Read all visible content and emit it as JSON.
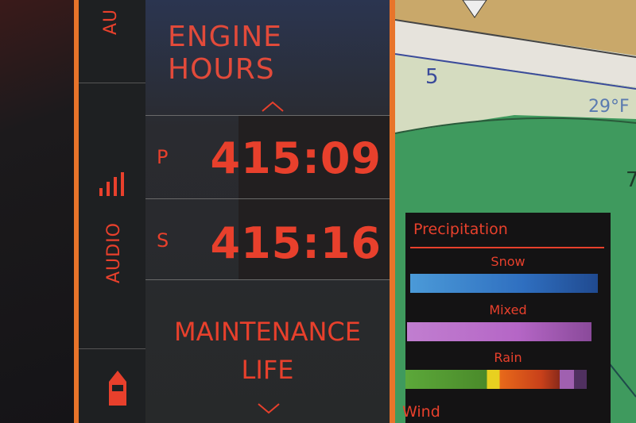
{
  "sidebar": {
    "items": [
      {
        "label": "AU"
      },
      {
        "label": "AUDIO",
        "icon": "signal-bars-icon"
      },
      {
        "icon": "boat-icon"
      }
    ]
  },
  "engine": {
    "title": "ENGINE HOURS",
    "rows": [
      {
        "label": "P",
        "value": "415:09"
      },
      {
        "label": "S",
        "value": "415:16"
      }
    ],
    "maintenance_line1": "MAINTENANCE",
    "maintenance_line2": "LIFE"
  },
  "map": {
    "labels": [
      "5",
      "29°F",
      "7"
    ]
  },
  "legend": {
    "title": "Precipitation",
    "items": [
      {
        "label": "Snow"
      },
      {
        "label": "Mixed"
      },
      {
        "label": "Rain"
      }
    ],
    "next": "Wind"
  },
  "colors": {
    "accent": "#e8402c",
    "frame": "#e8742a",
    "snow": "#2f6fc0",
    "mixed": "#b566c6"
  }
}
